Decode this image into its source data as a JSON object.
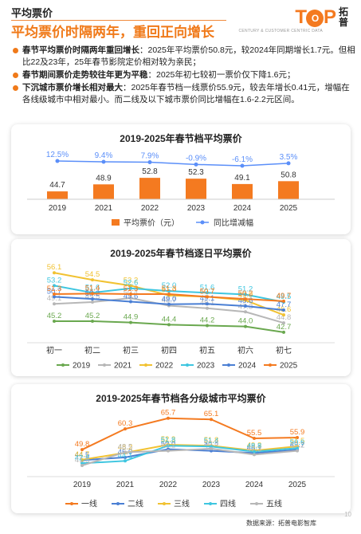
{
  "header": {
    "kicker": "平均票价",
    "headline": "平均票价时隔两年，重回正向增长",
    "logo_text": "T P",
    "logo_o": "O",
    "logo_cn": "拓普",
    "logo_sub": "CENTURY & CUSTOMER CENTRIC DATA"
  },
  "bullets": [
    {
      "bold": "春节平均票价时隔两年重回增长",
      "text": "：2025年平均票价50.8元，较2024年同期增长1.7元。但相比22及23年，25年春节影院定价相对较为亲民；"
    },
    {
      "bold": "春节期间票价走势较往年更为平稳",
      "text": "：2025年初七较初一票价仅下降1.6元；"
    },
    {
      "bold": "下沉城市票价增长相对最大",
      "text": "：2025年春节档一线票价55.9元，较去年增长0.41元，增幅在各线级城市中相对最小。而二线及以下城市票价同比增幅在1.6-2.2元区间。"
    }
  ],
  "footer": {
    "source": "数据来源：拓普电影智库",
    "page": "10"
  },
  "chart_data": [
    {
      "type": "bar",
      "title": "2019-2025年春节档平均票价",
      "categories": [
        "2019",
        "2021",
        "2022",
        "2023",
        "2024",
        "2025"
      ],
      "series": [
        {
          "name": "平均票价（元）",
          "values": [
            44.7,
            48.9,
            52.8,
            52.3,
            49.1,
            50.8
          ],
          "color": "#f47a20"
        },
        {
          "name": "同比增减幅",
          "values": [
            12.5,
            9.4,
            7.9,
            -0.9,
            -6.1,
            3.5
          ],
          "labels": [
            "12.5%",
            "9.4%",
            "7.9%",
            "-0.9%",
            "-6.1%",
            "3.5%"
          ],
          "color": "#5b8ff9"
        }
      ],
      "legend": "bottom"
    },
    {
      "type": "line",
      "title": "2019-2025年春节档逐日平均票价",
      "categories": [
        "初一",
        "初二",
        "初三",
        "初四",
        "初五",
        "初六",
        "初七"
      ],
      "series": [
        {
          "name": "2019",
          "color": "#6aa84f",
          "values": [
            45.2,
            45.2,
            44.9,
            44.4,
            44.2,
            44.0,
            42.7
          ]
        },
        {
          "name": "2021",
          "color": "#b7b7b7",
          "values": [
            49.1,
            49.5,
            50.4,
            48.7,
            48.1,
            47.3,
            44.8
          ]
        },
        {
          "name": "2022",
          "color": "#f1c232",
          "values": [
            56.1,
            54.5,
            53.2,
            51.0,
            50.7,
            49.9,
            46.6
          ]
        },
        {
          "name": "2023",
          "color": "#3ec6e0",
          "values": [
            53.2,
            51.6,
            52.6,
            52.0,
            51.6,
            51.2,
            49.5
          ]
        },
        {
          "name": "2024",
          "color": "#4a7fd4",
          "values": [
            50.7,
            50.2,
            49.6,
            49.0,
            49.1,
            48.6,
            47.7
          ]
        },
        {
          "name": "2025",
          "color": "#f47a20",
          "values": [
            51.3,
            51.4,
            51.3,
            51.3,
            50.7,
            50.2,
            49.7
          ]
        }
      ],
      "legend": "bottom"
    },
    {
      "type": "line",
      "title": "2019-2025年春节档各分级城市平均票价",
      "categories": [
        "2019",
        "2021",
        "2022",
        "2023",
        "2024",
        "2025"
      ],
      "series": [
        {
          "name": "一线",
          "color": "#f47a20",
          "values": [
            49.8,
            60.3,
            65.7,
            65.1,
            55.5,
            55.9
          ]
        },
        {
          "name": "二线",
          "color": "#4a7fd4",
          "values": [
            44.5,
            45.9,
            50.0,
            49.2,
            48.1,
            49.7
          ]
        },
        {
          "name": "三线",
          "color": "#f1c232",
          "values": [
            44.7,
            48.2,
            52.3,
            51.8,
            49.3,
            51.5
          ]
        },
        {
          "name": "四线",
          "color": "#3ec6e0",
          "values": [
            42.9,
            44.1,
            51.8,
            51.4,
            48.8,
            50.6
          ]
        },
        {
          "name": "五线",
          "color": "#b7b7b7",
          "values": [
            41.8,
            48.5,
            49.2,
            50.3,
            47.3,
            49.2
          ]
        }
      ],
      "legend": "bottom"
    }
  ]
}
